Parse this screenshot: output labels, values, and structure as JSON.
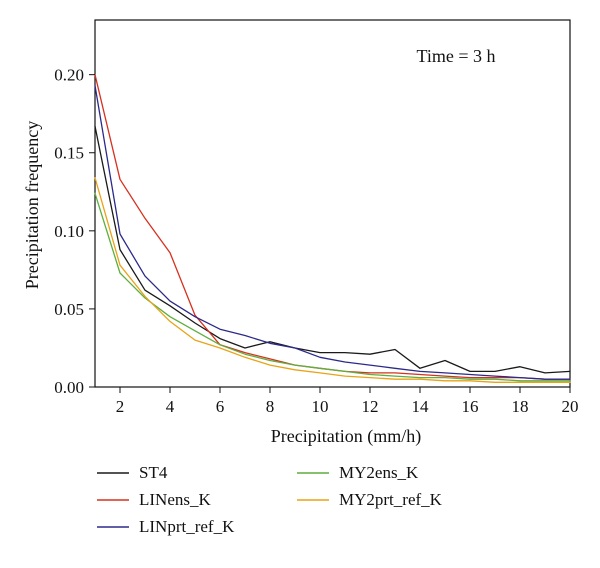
{
  "chart_data": {
    "type": "line",
    "xlabel": "Precipitation (mm/h)",
    "ylabel": "Precipitation frequency",
    "annotation": "Time = 3 h",
    "xlim": [
      1,
      20
    ],
    "ylim": [
      0,
      0.235
    ],
    "xticks": [
      2,
      4,
      6,
      8,
      10,
      12,
      14,
      16,
      18,
      20
    ],
    "yticks": [
      0.0,
      0.05,
      0.1,
      0.15,
      0.2
    ],
    "ytick_labels": [
      "0.00",
      "0.05",
      "0.10",
      "0.15",
      "0.20"
    ],
    "grid": false,
    "legend_position": "bottom",
    "x": [
      1,
      2,
      3,
      4,
      5,
      6,
      7,
      8,
      9,
      10,
      11,
      12,
      13,
      14,
      15,
      16,
      17,
      18,
      19,
      20
    ],
    "series": [
      {
        "name": "ST4",
        "color": "#1a1a1a",
        "values": [
          0.167,
          0.088,
          0.062,
          0.052,
          0.041,
          0.031,
          0.025,
          0.029,
          0.025,
          0.022,
          0.022,
          0.021,
          0.024,
          0.012,
          0.017,
          0.01,
          0.01,
          0.013,
          0.009,
          0.01
        ]
      },
      {
        "name": "LINens_K",
        "color": "#d7301f",
        "values": [
          0.2,
          0.133,
          0.108,
          0.086,
          0.046,
          0.027,
          0.022,
          0.018,
          0.014,
          0.012,
          0.01,
          0.009,
          0.009,
          0.008,
          0.007,
          0.006,
          0.006,
          0.006,
          0.005,
          0.005
        ]
      },
      {
        "name": "LINprt_ref_K",
        "color": "#2b2a8a",
        "values": [
          0.193,
          0.098,
          0.071,
          0.055,
          0.045,
          0.037,
          0.033,
          0.028,
          0.025,
          0.019,
          0.016,
          0.014,
          0.012,
          0.01,
          0.009,
          0.008,
          0.007,
          0.006,
          0.005,
          0.005
        ]
      },
      {
        "name": "MY2ens_K",
        "color": "#5fae3e",
        "values": [
          0.124,
          0.073,
          0.057,
          0.045,
          0.036,
          0.027,
          0.021,
          0.017,
          0.014,
          0.012,
          0.01,
          0.008,
          0.007,
          0.006,
          0.006,
          0.005,
          0.005,
          0.004,
          0.004,
          0.004
        ]
      },
      {
        "name": "MY2prt_ref_K",
        "color": "#e8a317",
        "values": [
          0.134,
          0.078,
          0.058,
          0.042,
          0.03,
          0.025,
          0.019,
          0.014,
          0.011,
          0.009,
          0.007,
          0.006,
          0.005,
          0.005,
          0.004,
          0.004,
          0.003,
          0.003,
          0.003,
          0.003
        ]
      }
    ]
  }
}
